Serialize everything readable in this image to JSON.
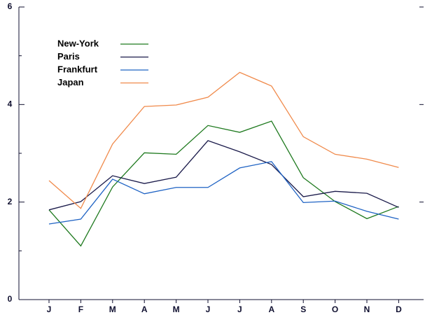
{
  "chart_data": {
    "type": "line",
    "categories": [
      "J",
      "F",
      "M",
      "A",
      "M",
      "J",
      "J",
      "A",
      "S",
      "O",
      "N",
      "D"
    ],
    "series": [
      {
        "name": "New-York",
        "color": "#1f7a1f",
        "values": [
          1.84,
          1.1,
          2.31,
          3.01,
          2.98,
          3.57,
          3.43,
          3.66,
          2.5,
          2.01,
          1.66,
          1.91
        ]
      },
      {
        "name": "Paris",
        "color": "#1a1a4a",
        "values": [
          1.84,
          2.01,
          2.54,
          2.38,
          2.51,
          3.26,
          3.03,
          2.77,
          2.11,
          2.22,
          2.18,
          1.89
        ]
      },
      {
        "name": "Frankfurt",
        "color": "#1f63c4",
        "values": [
          1.55,
          1.65,
          2.47,
          2.17,
          2.3,
          2.3,
          2.7,
          2.83,
          1.99,
          2.02,
          1.81,
          1.65
        ]
      },
      {
        "name": "Japan",
        "color": "#f08a4b",
        "values": [
          2.44,
          1.87,
          3.19,
          3.96,
          3.99,
          4.15,
          4.66,
          4.38,
          3.34,
          2.98,
          2.88,
          2.71
        ]
      }
    ],
    "ylim": [
      0,
      6
    ],
    "yticks": [
      0,
      2,
      4,
      6
    ],
    "yminorticks": [
      1,
      3,
      5
    ],
    "legend": "upper left"
  }
}
